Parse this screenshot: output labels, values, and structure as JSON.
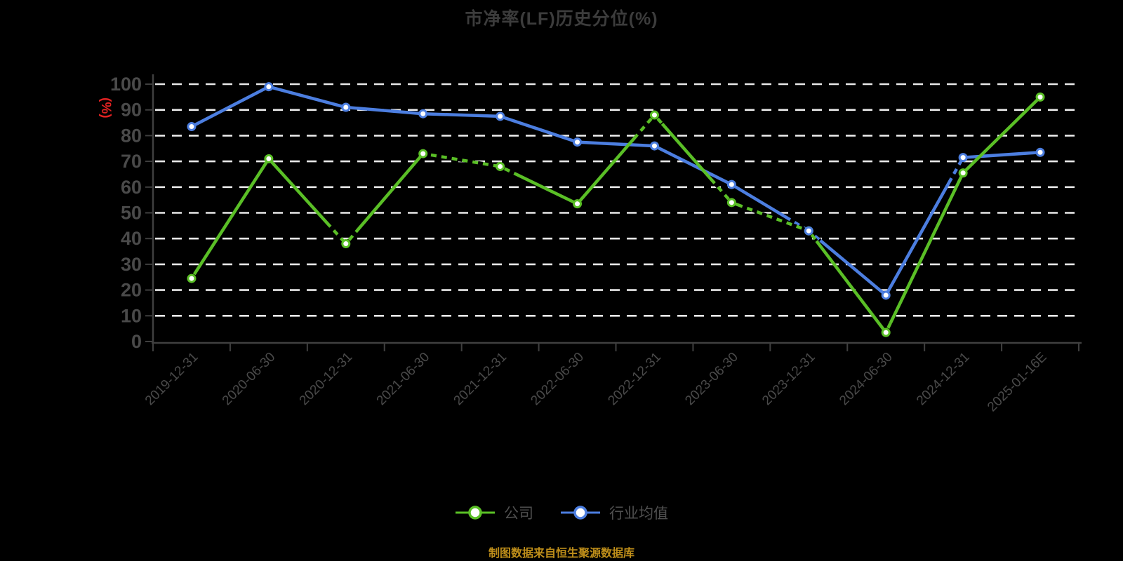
{
  "chart_data": {
    "type": "line",
    "title": "市净率(LF)历史分位(%)",
    "ylabel": "(%)",
    "xlabel": "",
    "ylim": [
      0,
      100
    ],
    "ytick_step": 10,
    "grid": "horizontal-dashed",
    "legend_position": "bottom-center",
    "x_label_rotation": -45,
    "categories": [
      "2019-12-31",
      "2020-06-30",
      "2020-12-31",
      "2021-06-30",
      "2021-12-31",
      "2022-06-30",
      "2022-12-31",
      "2023-06-30",
      "2023-12-31",
      "2024-06-30",
      "2024-12-31",
      "2025-01-16E"
    ],
    "series": [
      {
        "name": "公司",
        "color": "#5ABF26",
        "values": [
          24.5,
          71,
          38,
          73,
          68,
          53.5,
          88,
          54,
          43,
          3.5,
          65.5,
          95
        ]
      },
      {
        "name": "行业均值",
        "color": "#4C7EE0",
        "values": [
          83.5,
          99,
          91,
          88.5,
          87.5,
          77.5,
          76,
          61,
          43,
          18,
          71.5,
          73.5
        ]
      }
    ]
  },
  "footer": {
    "source_note": "制图数据来自恒生聚源数据库"
  },
  "colors": {
    "background": "#000000",
    "title": "#3C3C3C",
    "axis": "#3F3F3F",
    "grid": "#E8E8E8",
    "tick_label": "#4A4A4A",
    "ylabel_unit": "#E02222",
    "legend_text": "#4F4F4F",
    "source_note": "#BE8E1A",
    "marker_fill": "#FFFFFF"
  }
}
